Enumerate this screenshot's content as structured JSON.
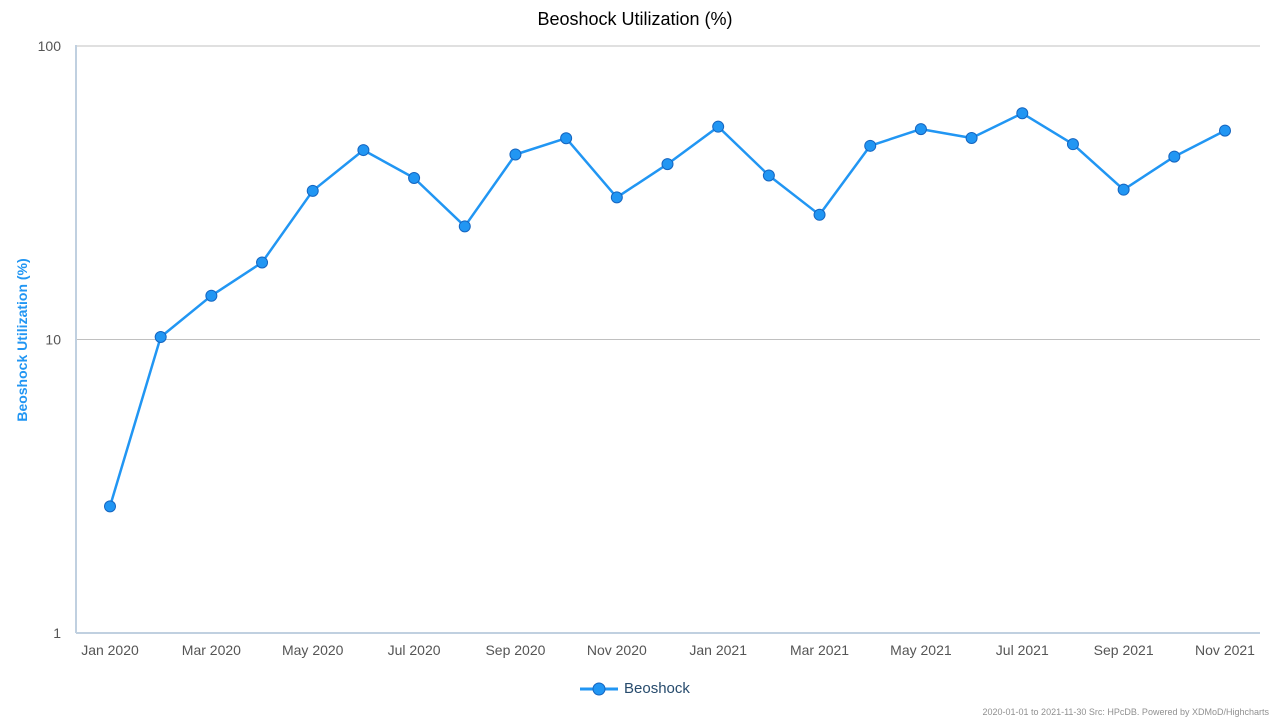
{
  "chart_data": {
    "type": "line",
    "title": "Beoshock Utilization (%)",
    "xlabel": "",
    "ylabel": "Beoshock Utilization (%)",
    "y_scale": "log",
    "ylim": [
      1,
      100
    ],
    "y_ticks": [
      "1",
      "10",
      "100"
    ],
    "x": [
      "2020-01",
      "2020-02",
      "2020-03",
      "2020-04",
      "2020-05",
      "2020-06",
      "2020-07",
      "2020-08",
      "2020-09",
      "2020-10",
      "2020-11",
      "2020-12",
      "2021-01",
      "2021-02",
      "2021-03",
      "2021-04",
      "2021-05",
      "2021-06",
      "2021-07",
      "2021-08",
      "2021-09",
      "2021-10",
      "2021-11"
    ],
    "x_tick_labels": [
      {
        "x": "2020-01",
        "label": "Jan 2020"
      },
      {
        "x": "2020-03",
        "label": "Mar 2020"
      },
      {
        "x": "2020-05",
        "label": "May 2020"
      },
      {
        "x": "2020-07",
        "label": "Jul 2020"
      },
      {
        "x": "2020-09",
        "label": "Sep 2020"
      },
      {
        "x": "2020-11",
        "label": "Nov 2020"
      },
      {
        "x": "2021-01",
        "label": "Jan 2021"
      },
      {
        "x": "2021-03",
        "label": "Mar 2021"
      },
      {
        "x": "2021-05",
        "label": "May 2021"
      },
      {
        "x": "2021-07",
        "label": "Jul 2021"
      },
      {
        "x": "2021-09",
        "label": "Sep 2021"
      },
      {
        "x": "2021-11",
        "label": "Nov 2021"
      }
    ],
    "series": [
      {
        "name": "Beoshock",
        "color": "#2196f3",
        "values": [
          2.7,
          10.2,
          14.1,
          18.3,
          32.1,
          44.2,
          35.5,
          24.3,
          42.7,
          48.5,
          30.5,
          39.6,
          53.1,
          36.2,
          26.6,
          45.7,
          52.1,
          48.6,
          59.0,
          46.3,
          32.4,
          42.0,
          51.5
        ]
      }
    ],
    "grid": true,
    "legend_position": "bottom-center",
    "credits": "2020-01-01 to 2021-11-30 Src: HPcDB. Powered by XDMoD/Highcharts"
  }
}
